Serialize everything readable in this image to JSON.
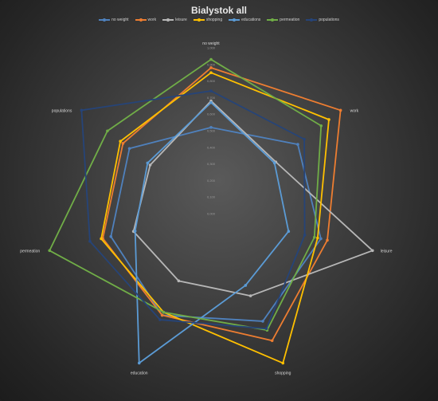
{
  "chart_data": {
    "type": "radar",
    "title": "Bialystok all",
    "categories": [
      "no weight",
      "work",
      "leisure",
      "shopping",
      "education",
      "permeation",
      "populations"
    ],
    "range": [
      0,
      1
    ],
    "ticks": [
      "0,000",
      "0,100",
      "0,200",
      "0,300",
      "0,400",
      "0,500",
      "0,600",
      "0,700",
      "0,800",
      "0,900",
      "1,000"
    ],
    "grid": false,
    "legend_position": "top",
    "series": [
      {
        "name": "no weight",
        "color": "#4f81bd",
        "values": [
          0.52,
          0.67,
          0.68,
          0.72,
          0.68,
          0.62,
          0.63
        ]
      },
      {
        "name": "work",
        "color": "#ed7d31",
        "values": [
          0.88,
          1.0,
          0.72,
          0.85,
          0.68,
          0.67,
          0.68
        ]
      },
      {
        "name": "leisure",
        "color": "#b7b7b7",
        "values": [
          0.68,
          0.5,
          1.0,
          0.55,
          0.45,
          0.48,
          0.47
        ]
      },
      {
        "name": "shopping",
        "color": "#ffc000",
        "values": [
          0.85,
          0.91,
          0.66,
          1.0,
          0.66,
          0.68,
          0.7
        ]
      },
      {
        "name": "educations",
        "color": "#5b9bd5",
        "values": [
          0.67,
          0.49,
          0.48,
          0.48,
          1.0,
          0.47,
          0.49
        ]
      },
      {
        "name": "permeation",
        "color": "#70ad47",
        "values": [
          0.93,
          0.85,
          0.64,
          0.78,
          0.66,
          1.0,
          0.8
        ]
      },
      {
        "name": "populations",
        "color": "#264478",
        "values": [
          0.74,
          0.72,
          0.58,
          0.77,
          0.71,
          0.75,
          1.0
        ]
      }
    ]
  }
}
